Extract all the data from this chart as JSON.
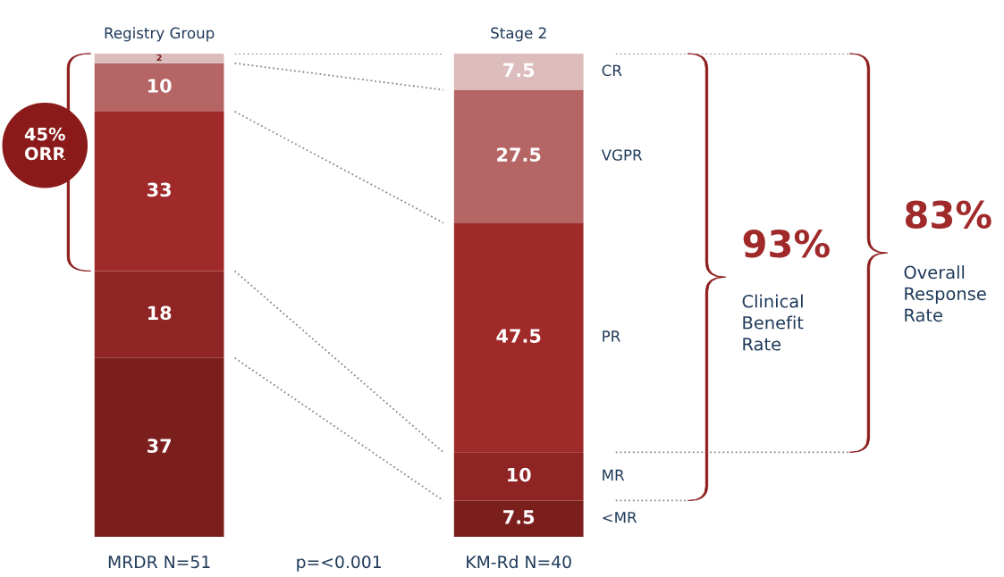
{
  "chart_data": {
    "type": "bar",
    "stacked": true,
    "data_labels": true,
    "legend": false,
    "categories": [
      "MRDR N=51",
      "KM-Rd N=40"
    ],
    "series": [
      {
        "name": "<MR",
        "color": "#7b1f1d",
        "values": [
          37,
          7.5
        ]
      },
      {
        "name": "MR",
        "color": "#8e2423",
        "values": [
          18,
          10
        ]
      },
      {
        "name": "PR",
        "color": "#a0292a",
        "values": [
          33,
          47.5
        ]
      },
      {
        "name": "VGPR",
        "color": "#b46564",
        "values": [
          10,
          27.5
        ]
      },
      {
        "name": "CR",
        "color": "#dcbcbc",
        "values": [
          2,
          7.5
        ]
      }
    ],
    "annotations": [
      {
        "text": "Registry Group",
        "x": "MRDR N=51",
        "y": 100
      },
      {
        "text": "Stage 2",
        "x": "KM-Rd N=40",
        "y": 100
      },
      "p=<0.001",
      "45%\nORR",
      "93%",
      "Clinical\nBenefit\nRate",
      "83%",
      "Overall\nResponse\nRate"
    ]
  }
}
